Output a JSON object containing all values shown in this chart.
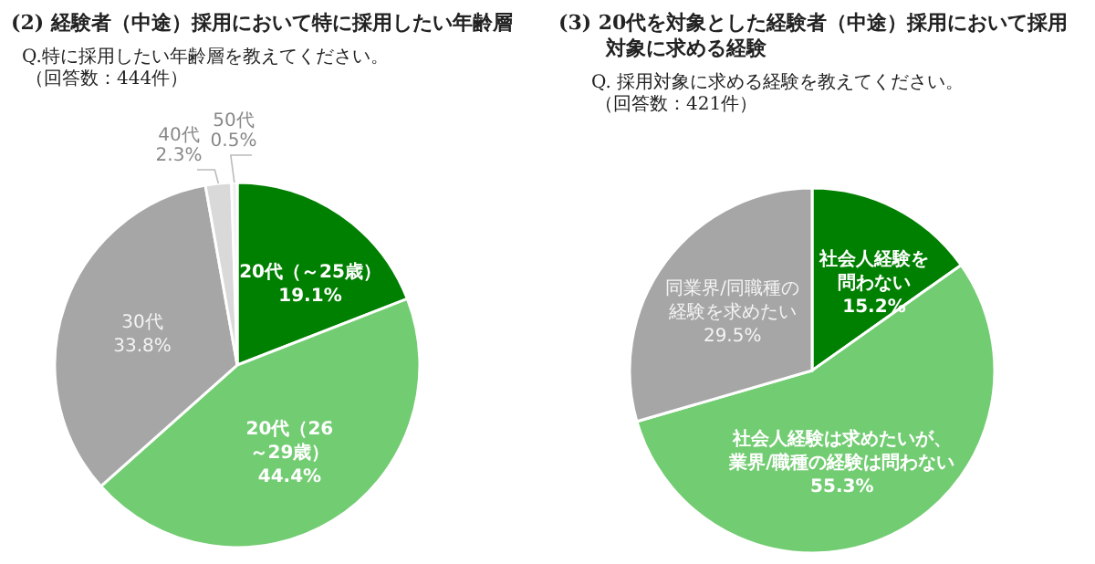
{
  "chart_data": [
    {
      "type": "pie",
      "title": "(2) 経験者（中途）採用において特に採用したい年齢層",
      "subtitle": "Q.特に採用したい年齢層を教えてください。（回答数：444件）",
      "categories": [
        "20代（～25歳）",
        "20代（26～29歳）",
        "30代",
        "40代",
        "50代"
      ],
      "values": [
        19.1,
        44.4,
        33.8,
        2.3,
        0.5
      ],
      "value_labels": [
        "19.1%",
        "44.4%",
        "33.8%",
        "2.3%",
        "0.5%"
      ],
      "colors": [
        "#008000",
        "#72cc72",
        "#a6a6a6",
        "#d9d9d9",
        "#efefef"
      ]
    },
    {
      "type": "pie",
      "title": "(3) 20代を対象とした経験者（中途）採用において採用対象に求める経験",
      "subtitle": "Q. 採用対象に求める経験を教えてください。（回答数：421件）",
      "categories": [
        "社会人経験を問わない",
        "社会人経験は求めたいが、業界/職種の経験は問わない",
        "同業界/同職種の経験を求めたい"
      ],
      "values": [
        15.2,
        55.3,
        29.5
      ],
      "value_labels": [
        "15.2%",
        "55.3%",
        "29.5%"
      ],
      "colors": [
        "#008000",
        "#72cc72",
        "#a6a6a6"
      ]
    }
  ]
}
